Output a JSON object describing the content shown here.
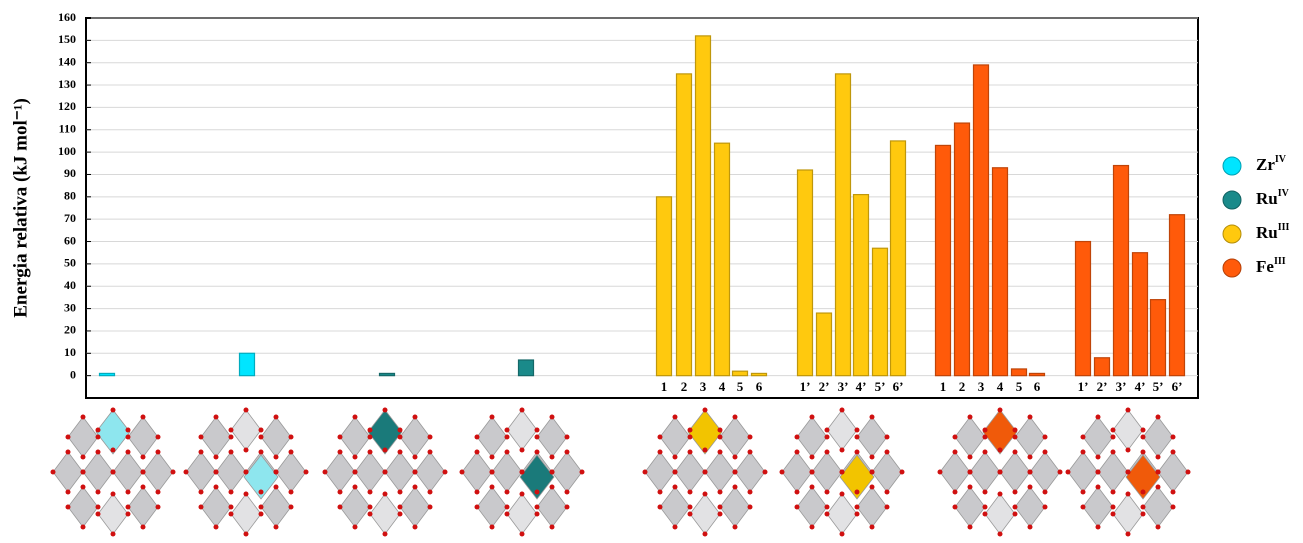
{
  "chart_data": {
    "type": "bar",
    "ylabel": "Energia relativa (kJ mol⁻¹)",
    "categories": [
      null,
      null,
      null,
      null,
      "1",
      "2",
      "3",
      "4",
      "5",
      "6",
      "1’",
      "2’",
      "3’",
      "4’",
      "5’",
      "6’",
      "1",
      "2",
      "3",
      "4",
      "5",
      "6",
      "1’",
      "2’",
      "3’",
      "4’",
      "5’",
      "6’"
    ],
    "series": [
      {
        "name": "Zr",
        "name_sup": "IV",
        "color": "#00e5ff",
        "values": [
          1,
          10,
          null,
          null,
          null,
          null,
          null,
          null,
          null,
          null,
          null,
          null,
          null,
          null,
          null,
          null,
          null,
          null,
          null,
          null,
          null,
          null,
          null,
          null,
          null,
          null,
          null,
          null
        ]
      },
      {
        "name": "Ru",
        "name_sup": "IV",
        "color": "#1a8a8a",
        "values": [
          null,
          null,
          1,
          7,
          null,
          null,
          null,
          null,
          null,
          null,
          null,
          null,
          null,
          null,
          null,
          null,
          null,
          null,
          null,
          null,
          null,
          null,
          null,
          null,
          null,
          null,
          null,
          null
        ]
      },
      {
        "name": "Ru",
        "name_sup": "III",
        "color": "#ffc90e",
        "values": [
          null,
          null,
          null,
          null,
          80,
          135,
          152,
          104,
          2,
          1,
          92,
          28,
          135,
          81,
          57,
          105,
          null,
          null,
          null,
          null,
          null,
          null,
          null,
          null,
          null,
          null,
          null,
          null
        ]
      },
      {
        "name": "Fe",
        "name_sup": "III",
        "color": "#ff5a0a",
        "values": [
          null,
          null,
          null,
          null,
          null,
          null,
          null,
          null,
          null,
          null,
          null,
          null,
          null,
          null,
          null,
          null,
          103,
          113,
          139,
          93,
          3,
          1,
          60,
          8,
          94,
          55,
          34,
          72
        ]
      }
    ],
    "ylim": [
      -10,
      160
    ],
    "yticks": [
      0,
      10,
      20,
      30,
      40,
      50,
      60,
      70,
      80,
      90,
      100,
      110,
      120,
      130,
      140,
      150,
      160
    ],
    "grid": true
  }
}
